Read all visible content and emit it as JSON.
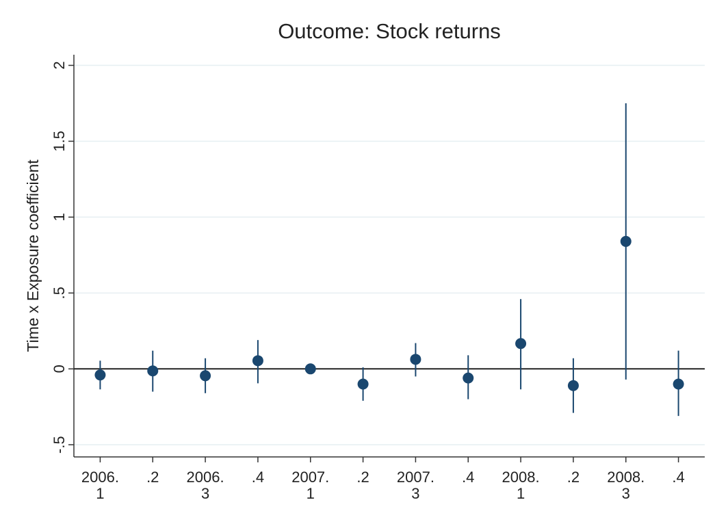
{
  "chart_data": {
    "type": "coefplot",
    "title": "Outcome: Stock returns",
    "y_label": "Time x Exposure coefficient",
    "categories": [
      "2006.\n1",
      ".2",
      "2006.\n3",
      ".4",
      "2007.\n1",
      ".2",
      "2007.\n3",
      ".4",
      "2008.\n1",
      ".2",
      "2008.\n3",
      ".4"
    ],
    "series": [
      {
        "color": "#1a476f",
        "values": [
          -0.04,
          -0.013,
          -0.045,
          0.054,
          0,
          -0.1,
          0.063,
          -0.06,
          0.167,
          -0.11,
          0.84,
          -0.1
        ],
        "ci_low": [
          -0.135,
          -0.15,
          -0.16,
          -0.095,
          null,
          -0.21,
          -0.05,
          -0.2,
          -0.135,
          -0.29,
          -0.07,
          -0.31
        ],
        "ci_high": [
          0.054,
          0.12,
          0.07,
          0.19,
          null,
          0.01,
          0.17,
          0.09,
          0.46,
          0.07,
          1.75,
          0.12
        ]
      }
    ],
    "ylim": [
      -0.58,
      2.07
    ],
    "yticks": [
      {
        "value": -0.5,
        "label": "-.5"
      },
      0,
      {
        "value": 0.5,
        "label": ".5"
      },
      1,
      1.5,
      2
    ],
    "reference_line": 0,
    "grid": true
  }
}
